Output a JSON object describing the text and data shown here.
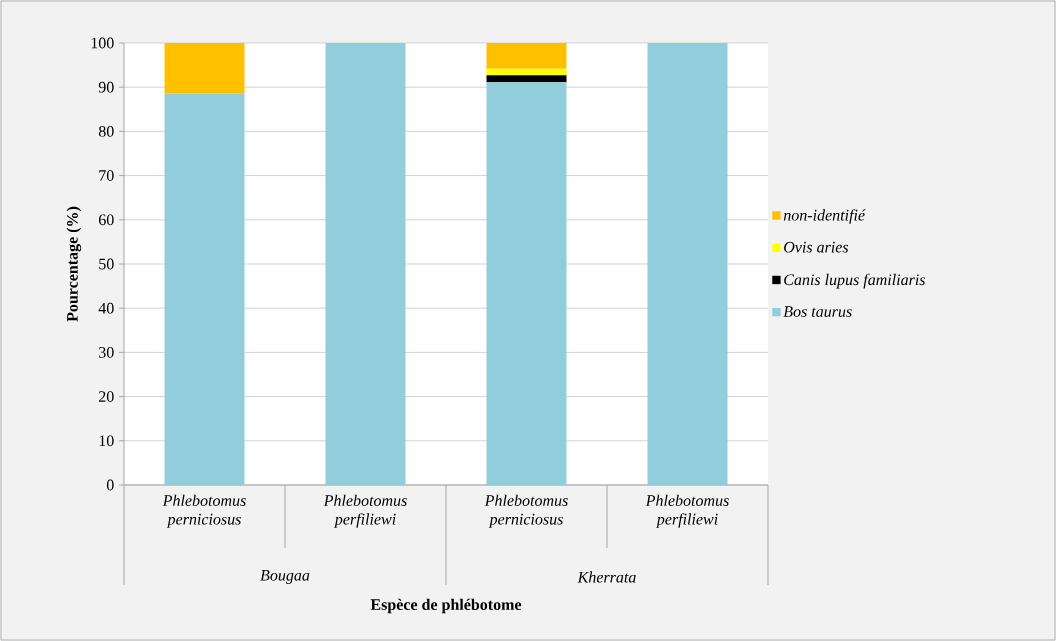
{
  "chart_data": {
    "type": "bar",
    "stacked": true,
    "xlabel": "Espèce de phlébotome",
    "ylabel": "Pourcentage (%)",
    "categories": [
      "Phlebotomus perniciosus",
      "Phlebotomus perfiliewi",
      "Phlebotomus perniciosus",
      "Phlebotomus perfiliewi"
    ],
    "annotations": [
      "Bougaa",
      "Kherrata"
    ],
    "series": [
      {
        "name": "Bos taurus",
        "color": "#92cddc",
        "values": [
          88.6,
          100,
          91.1,
          100
        ]
      },
      {
        "name": "Canis lupus familiaris",
        "color": "#000000",
        "values": [
          0,
          0,
          1.6,
          0
        ]
      },
      {
        "name": "Ovis aries",
        "color": "#ffff00",
        "values": [
          0,
          0,
          1.5,
          0
        ]
      },
      {
        "name": "non-identifié",
        "color": "#ffc000",
        "values": [
          11.4,
          0,
          5.8,
          0
        ]
      }
    ],
    "ylim": [
      0,
      100
    ],
    "yticks": [
      0,
      10,
      20,
      30,
      40,
      50,
      60,
      70,
      80,
      90,
      100
    ],
    "grid": "y",
    "legend": "right"
  }
}
